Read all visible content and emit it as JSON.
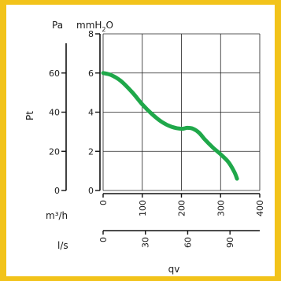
{
  "chart_data": {
    "type": "line",
    "units": {
      "pa": "Pa",
      "mmh2o_prefix": "mmH",
      "mmh2o_sub": "2",
      "mmh2o_suffix": "O",
      "m3h": "m³/h",
      "ls": "l/s"
    },
    "ylabel": "Pt",
    "xlabel": "qv",
    "y_pa_ticks": [
      "0",
      "20",
      "40",
      "60"
    ],
    "y_pa_values": [
      0,
      20,
      40,
      60
    ],
    "y_mm_ticks": [
      "0",
      "2",
      "4",
      "6",
      "8"
    ],
    "y_mm_values": [
      0,
      2,
      4,
      6,
      8
    ],
    "x_m3h_ticks": [
      "0",
      "100",
      "200",
      "300",
      "400"
    ],
    "x_m3h_values": [
      0,
      100,
      200,
      300,
      400
    ],
    "x_ls_ticks": [
      "0",
      "30",
      "60",
      "90"
    ],
    "x_ls_values": [
      0,
      30,
      60,
      90
    ],
    "xlim": [
      0,
      400
    ],
    "ylim": [
      0,
      8
    ],
    "grid": true,
    "series": [
      {
        "color": "#1fa84a",
        "x": [
          0,
          20,
          45,
          75,
          100,
          125,
          150,
          175,
          200,
          215,
          230,
          245,
          260,
          280,
          300,
          320,
          335,
          342
        ],
        "y": [
          6.0,
          5.9,
          5.6,
          5.0,
          4.4,
          3.9,
          3.5,
          3.25,
          3.15,
          3.2,
          3.15,
          2.95,
          2.6,
          2.2,
          1.85,
          1.45,
          0.95,
          0.6
        ]
      }
    ]
  }
}
